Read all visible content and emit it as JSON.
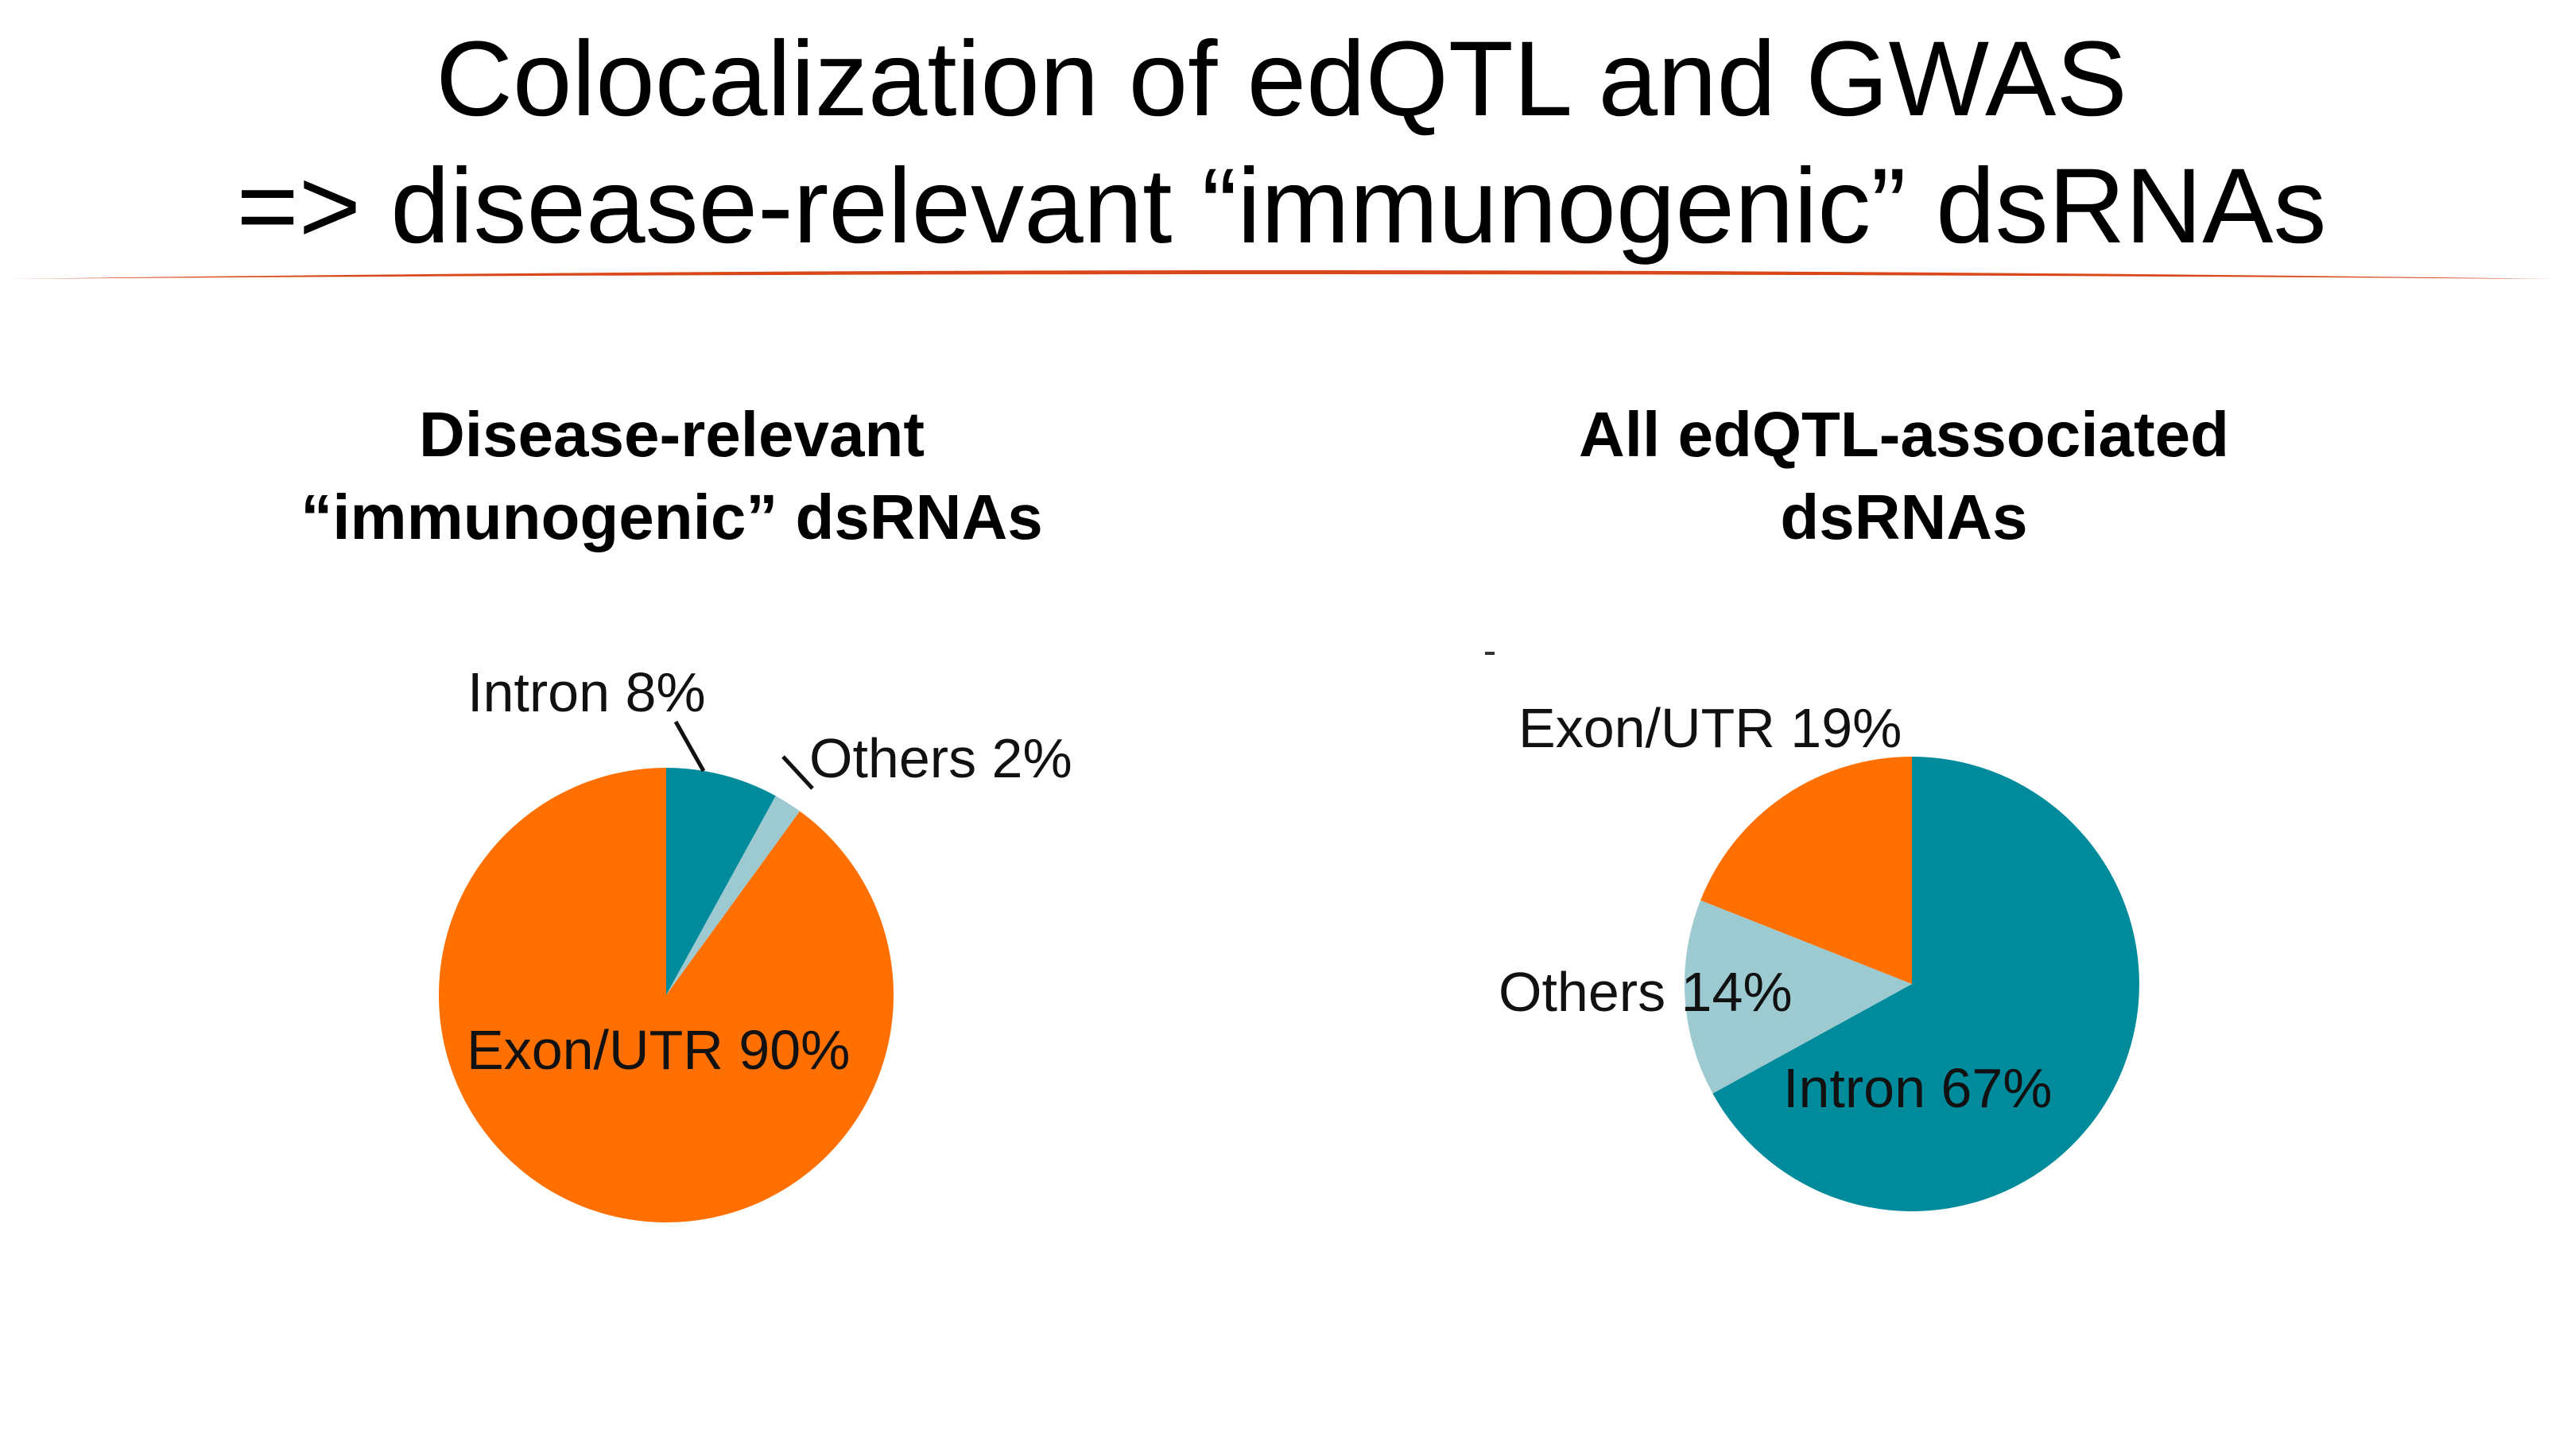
{
  "slide": {
    "title_line1": "Colocalization of edQTL and GWAS",
    "title_line2": "=> disease-relevant “immunogenic” dsRNAs",
    "rule_color": "#d9481a"
  },
  "colors": {
    "exon_utr": "#ff7000",
    "intron": "#008b9c",
    "others": "#9ccad0"
  },
  "chart_data": [
    {
      "type": "pie",
      "title_line1": "Disease-relevant",
      "title_line2": "“immunogenic” dsRNAs",
      "slices": [
        {
          "label": "Intron 8%",
          "value": 8,
          "color": "#008b9c"
        },
        {
          "label": "Others 2%",
          "value": 2,
          "color": "#9ccad0"
        },
        {
          "label": "Exon/UTR 90%",
          "value": 90,
          "color": "#ff7000"
        }
      ]
    },
    {
      "type": "pie",
      "title_line1": "All edQTL-associated",
      "title_line2": "dsRNAs",
      "slices": [
        {
          "label": "Intron 67%",
          "value": 67,
          "color": "#008b9c"
        },
        {
          "label": "Others 14%",
          "value": 14,
          "color": "#9ccad0"
        },
        {
          "label": "Exon/UTR 19%",
          "value": 19,
          "color": "#ff7000"
        }
      ]
    }
  ]
}
